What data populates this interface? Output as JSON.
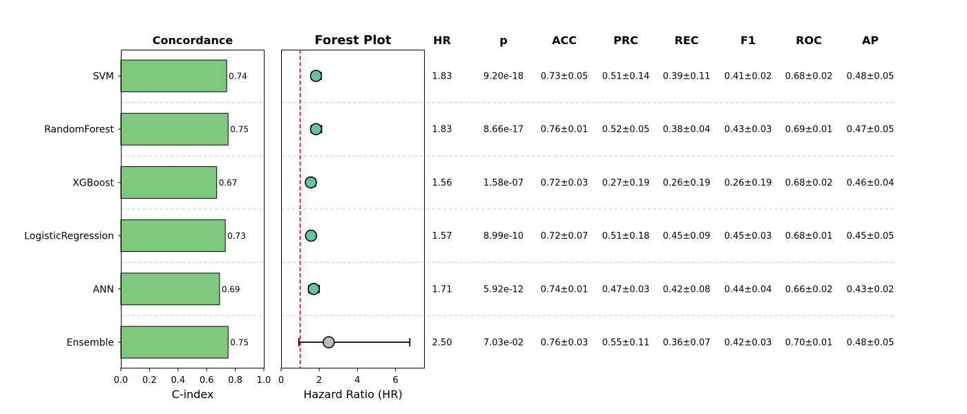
{
  "chart_data": [
    {
      "type": "bar",
      "orientation": "horizontal",
      "title": "Concordance",
      "xlabel": "C-index",
      "ylabel": "",
      "xlim": [
        0,
        1
      ],
      "xticks": [
        "0.0",
        "0.2",
        "0.4",
        "0.6",
        "0.8",
        "1.0"
      ],
      "categories": [
        "SVM",
        "RandomForest",
        "XGBoost",
        "LogisticRegression",
        "ANN",
        "Ensemble"
      ],
      "values": [
        0.74,
        0.75,
        0.67,
        0.73,
        0.69,
        0.75
      ],
      "value_labels": [
        "0.74",
        "0.75",
        "0.67",
        "0.73",
        "0.69",
        "0.75"
      ],
      "bar_color": "#7fc97f"
    },
    {
      "type": "scatter",
      "title": "Forest Plot",
      "xlabel": "Hazard Ratio (HR)",
      "xlim": [
        0,
        7.5
      ],
      "xticks": [
        "0",
        "2",
        "4",
        "6"
      ],
      "reference_line": 1,
      "reference_color": "#e41a1c",
      "categories": [
        "SVM",
        "RandomForest",
        "XGBoost",
        "LogisticRegression",
        "ANN",
        "Ensemble"
      ],
      "hr": [
        1.83,
        1.83,
        1.56,
        1.57,
        1.71,
        2.5
      ],
      "ci_low": [
        1.6,
        1.58,
        1.35,
        1.4,
        1.45,
        0.93
      ],
      "ci_high": [
        2.1,
        2.12,
        1.8,
        1.75,
        2.0,
        6.75
      ],
      "significant_color": "#66c2a5",
      "nonsignificant_color": "#bdbdbd"
    },
    {
      "type": "table",
      "columns": [
        "HR",
        "p",
        "ACC",
        "PRC",
        "REC",
        "F1",
        "ROC",
        "AP"
      ],
      "rows": [
        [
          "1.83",
          "9.20e-18",
          "0.73±0.05",
          "0.51±0.14",
          "0.39±0.11",
          "0.41±0.02",
          "0.68±0.02",
          "0.48±0.05"
        ],
        [
          "1.83",
          "8.66e-17",
          "0.76±0.01",
          "0.52±0.05",
          "0.38±0.04",
          "0.43±0.03",
          "0.69±0.01",
          "0.47±0.05"
        ],
        [
          "1.56",
          "1.58e-07",
          "0.72±0.03",
          "0.27±0.19",
          "0.26±0.19",
          "0.26±0.19",
          "0.68±0.02",
          "0.46±0.04"
        ],
        [
          "1.57",
          "8.99e-10",
          "0.72±0.07",
          "0.51±0.18",
          "0.45±0.09",
          "0.45±0.03",
          "0.68±0.01",
          "0.45±0.05"
        ],
        [
          "1.71",
          "5.92e-12",
          "0.74±0.01",
          "0.47±0.03",
          "0.42±0.08",
          "0.44±0.04",
          "0.66±0.02",
          "0.43±0.02"
        ],
        [
          "2.50",
          "7.03e-02",
          "0.76±0.03",
          "0.55±0.11",
          "0.36±0.07",
          "0.42±0.03",
          "0.70±0.01",
          "0.48±0.05"
        ]
      ]
    }
  ]
}
